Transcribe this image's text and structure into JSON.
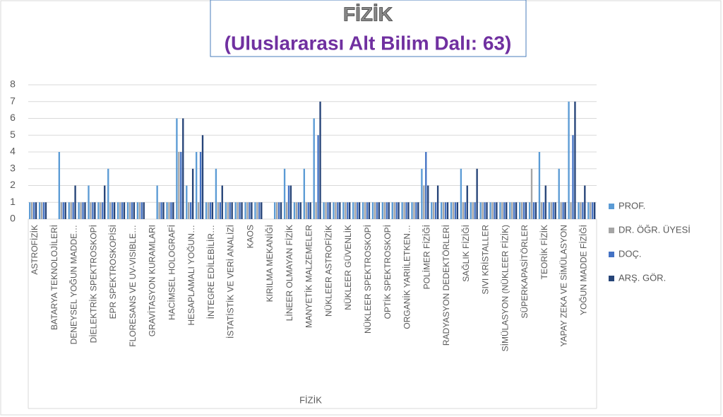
{
  "chart_data": {
    "type": "bar",
    "title": "FİZİK",
    "subtitle": "(Uluslararası Alt Bilim Dalı: 63)",
    "x_label": "FİZİK",
    "categories": [
      "ASTROFİZİK",
      null,
      "BATARYA TEKNOLOJİLERİ",
      null,
      "DENEYSEL YOĞUN MADDE…",
      null,
      "DİELEKTRİK SPEKTROSKOPİ",
      null,
      "EPR SPEKTROSKOPİSİ",
      null,
      "FLORESANS VE UV-VISIBLE…",
      null,
      "GRAVİTASYON KURAMLARI",
      null,
      "HACİMSEL HOLOGRAFİ",
      null,
      "HESAPLAMALI YOĞUN…",
      null,
      "İNTEGRE EDİLEBİLİR…",
      null,
      "İSTATİSTİK VE VERİ ANALİZİ",
      null,
      "KAOS",
      null,
      "KIRILMA MEKANİĞİ",
      null,
      "LİNEER OLMAYAN FİZİK",
      null,
      "MANYETİK MALZEMELER",
      null,
      "NÜKLEER ASTROFİZİK",
      null,
      "NÜKLEER GÜVENLİK",
      null,
      "NÜKLEER SPEKTROSKOPİ",
      null,
      "OPTİK SPEKTROSKOPİ",
      null,
      "ORGANİK YARIİLETKEN…",
      null,
      "POLİMER FİZİĞİ",
      null,
      "RADYASYON DEDEKTÖRLERİ",
      null,
      "SAĞLIK FİZİĞİ",
      null,
      "SIVI KRİSTALLER",
      null,
      "SİMÜLASYON (NÜKLEER FİZİK)",
      null,
      "SÜPERKAPASİTÖRLER",
      null,
      "TEORİK FİZİK",
      null,
      "YAPAY ZEKA VE SİMÜLASYON",
      null,
      "YOĞUN MADDE FİZİĞİ",
      null
    ],
    "series": [
      {
        "name": "PROF.",
        "color": "#5b9bd5",
        "values": [
          1,
          1,
          0,
          4,
          1,
          1,
          2,
          1,
          3,
          1,
          1,
          1,
          0,
          2,
          1,
          6,
          2,
          4,
          1,
          3,
          1,
          1,
          1,
          1,
          0,
          1,
          3,
          1,
          3,
          6,
          1,
          1,
          1,
          1,
          1,
          1,
          1,
          1,
          1,
          1,
          3,
          1,
          1,
          1,
          3,
          1,
          1,
          1,
          1,
          1,
          1,
          1,
          4,
          1,
          3,
          7,
          1,
          1
        ]
      },
      {
        "name": "DR. ÖĞR. ÜYESİ",
        "color": "#a5a5a5",
        "values": [
          1,
          1,
          0,
          1,
          1,
          1,
          1,
          1,
          1,
          1,
          1,
          1,
          0,
          1,
          1,
          4,
          1,
          1,
          1,
          1,
          1,
          1,
          1,
          1,
          0,
          1,
          1,
          1,
          1,
          1,
          1,
          1,
          1,
          1,
          1,
          1,
          1,
          1,
          1,
          1,
          2,
          1,
          1,
          1,
          1,
          1,
          1,
          1,
          1,
          1,
          1,
          3,
          1,
          1,
          1,
          1,
          1,
          1
        ]
      },
      {
        "name": "DOÇ.",
        "color": "#4472c4",
        "values": [
          1,
          1,
          0,
          1,
          1,
          1,
          1,
          1,
          1,
          1,
          1,
          1,
          0,
          1,
          1,
          4,
          1,
          4,
          1,
          1,
          1,
          1,
          1,
          1,
          0,
          1,
          2,
          1,
          1,
          5,
          1,
          1,
          1,
          1,
          1,
          1,
          1,
          1,
          1,
          1,
          4,
          1,
          1,
          1,
          1,
          1,
          1,
          1,
          1,
          1,
          1,
          1,
          1,
          1,
          1,
          5,
          1,
          1
        ]
      },
      {
        "name": "ARŞ. GÖR.",
        "color": "#264478",
        "values": [
          1,
          1,
          0,
          1,
          2,
          1,
          1,
          2,
          1,
          1,
          1,
          1,
          0,
          1,
          1,
          6,
          3,
          5,
          1,
          2,
          1,
          1,
          1,
          1,
          0,
          1,
          2,
          1,
          1,
          7,
          1,
          1,
          1,
          1,
          1,
          1,
          1,
          1,
          1,
          1,
          2,
          2,
          1,
          1,
          2,
          3,
          1,
          1,
          1,
          1,
          1,
          1,
          2,
          1,
          1,
          7,
          2,
          1
        ]
      }
    ],
    "ylim": [
      0,
      8
    ],
    "yticks": [
      0,
      1,
      2,
      3,
      4,
      5,
      6,
      7,
      8
    ],
    "grid": true,
    "legend": "right"
  }
}
